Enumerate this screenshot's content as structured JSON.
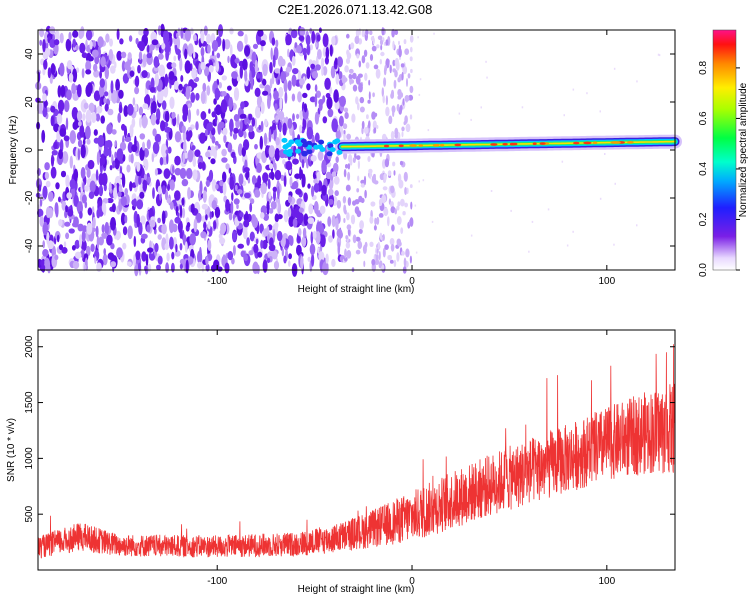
{
  "title": "C2E1.2026.071.13.42.G08",
  "chart_data": [
    {
      "type": "heatmap",
      "name": "spectrogram",
      "xlabel": "Height of straight line (km)",
      "ylabel": "Frequency (Hz)",
      "xlim": [
        -192,
        135
      ],
      "ylim": [
        -50,
        50
      ],
      "xticks": [
        -100,
        0,
        100
      ],
      "yticks": [
        -40,
        -20,
        0,
        20,
        40
      ],
      "colorbar": {
        "label": "Normalized spectral amplitude",
        "range": [
          0,
          0.95
        ],
        "ticks": [
          0.0,
          0.2,
          0.4,
          0.6,
          0.8
        ]
      },
      "features": {
        "noise_region_km": [
          -192,
          -35
        ],
        "sparse_noise_region_km": [
          -35,
          0
        ],
        "carrier_start_km": -67,
        "carrier_frequency_hz": 1,
        "carrier_frequency_drift_hz": [
          0,
          2.5
        ]
      }
    },
    {
      "type": "line",
      "name": "snr",
      "xlabel": "Height of straight line (km)",
      "ylabel": "SNR (10 * v/v)",
      "xlim": [
        -192,
        135
      ],
      "ylim": [
        0,
        2150
      ],
      "xticks": [
        -100,
        0,
        100
      ],
      "yticks": [
        500,
        1000,
        1500,
        2000
      ],
      "color": "#ee3333",
      "trend_x": [
        -192,
        -170,
        -150,
        -100,
        -60,
        -40,
        -20,
        0,
        20,
        40,
        60,
        80,
        100,
        120,
        135
      ],
      "trend_y": [
        200,
        300,
        220,
        210,
        230,
        280,
        370,
        480,
        620,
        760,
        880,
        1000,
        1130,
        1230,
        1270
      ],
      "noise_amplitude": [
        100,
        130,
        100,
        100,
        110,
        130,
        170,
        230,
        260,
        280,
        300,
        310,
        330,
        370,
        420
      ]
    }
  ]
}
